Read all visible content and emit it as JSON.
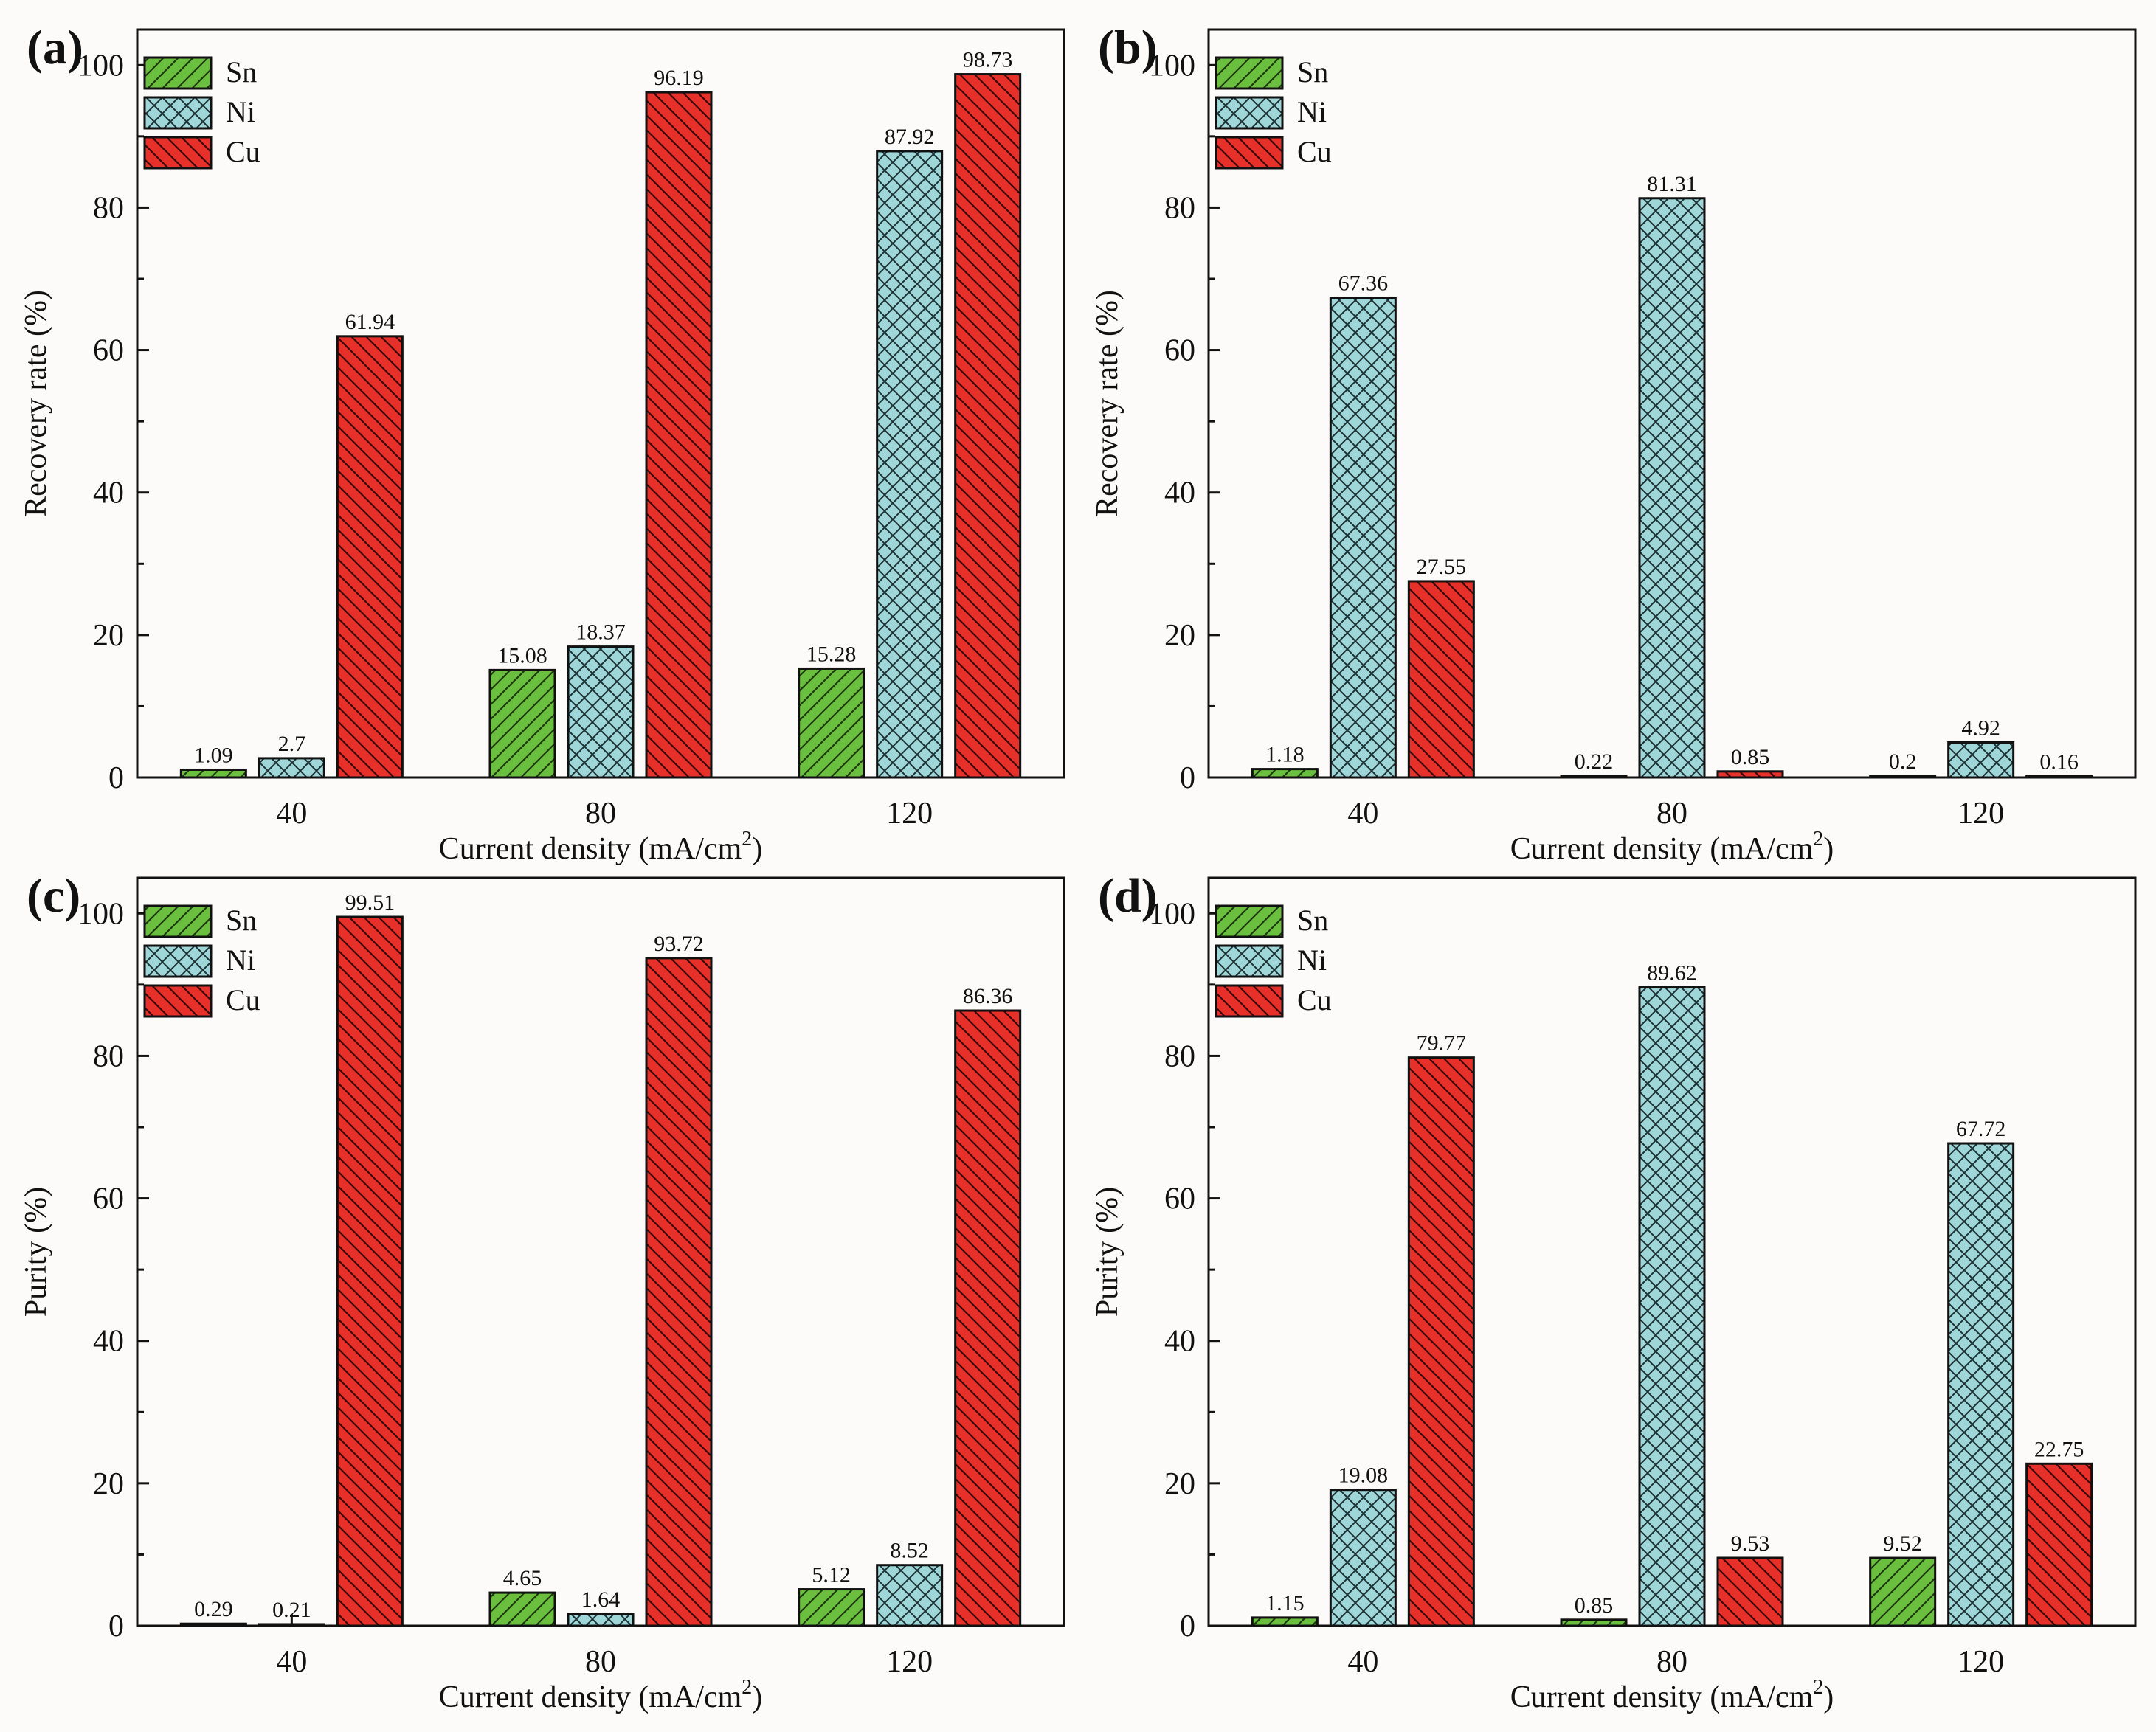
{
  "figure": {
    "series_style": [
      {
        "name": "Sn",
        "color": "#6bbf3f",
        "pattern": "diagonal-hatch"
      },
      {
        "name": "Ni",
        "color": "#9fd6d8",
        "pattern": "cross-hatch"
      },
      {
        "name": "Cu",
        "color": "#e8302a",
        "pattern": "back-diagonal-hatch"
      }
    ]
  },
  "chart_data": [
    {
      "panel": "(a)",
      "type": "bar",
      "categories": [
        "40",
        "80",
        "120"
      ],
      "xlabel": "Current density (mA/cm",
      "xlabel_sup": "2",
      "xlabel_end": ")",
      "ylabel": "Recovery rate (%)",
      "ylim": [
        0,
        105
      ],
      "yticks": [
        0,
        20,
        40,
        60,
        80,
        100
      ],
      "legend": "top-left",
      "series": [
        {
          "name": "Sn",
          "values": [
            1.09,
            15.08,
            15.28
          ],
          "labels": [
            "1.09",
            "15.08",
            "15.28"
          ]
        },
        {
          "name": "Ni",
          "values": [
            2.7,
            18.37,
            87.92
          ],
          "labels": [
            "2.7",
            "18.37",
            "87.92"
          ]
        },
        {
          "name": "Cu",
          "values": [
            61.94,
            96.19,
            98.73
          ],
          "labels": [
            "61.94",
            "96.19",
            "98.73"
          ]
        }
      ]
    },
    {
      "panel": "(b)",
      "type": "bar",
      "categories": [
        "40",
        "80",
        "120"
      ],
      "xlabel": "Current density (mA/cm",
      "xlabel_sup": "2",
      "xlabel_end": ")",
      "ylabel": "Recovery rate (%)",
      "ylim": [
        0,
        105
      ],
      "yticks": [
        0,
        20,
        40,
        60,
        80,
        100
      ],
      "legend": "top-left",
      "series": [
        {
          "name": "Sn",
          "values": [
            1.18,
            0.22,
            0.2
          ],
          "labels": [
            "1.18",
            "0.22",
            "0.2"
          ]
        },
        {
          "name": "Ni",
          "values": [
            67.36,
            81.31,
            4.92
          ],
          "labels": [
            "67.36",
            "81.31",
            "4.92"
          ]
        },
        {
          "name": "Cu",
          "values": [
            27.55,
            0.85,
            0.16
          ],
          "labels": [
            "27.55",
            "0.85",
            "0.16"
          ]
        }
      ]
    },
    {
      "panel": "(c)",
      "type": "bar",
      "categories": [
        "40",
        "80",
        "120"
      ],
      "xlabel": "Current density (mA/cm",
      "xlabel_sup": "2",
      "xlabel_end": ")",
      "ylabel": "Purity (%)",
      "ylim": [
        0,
        105
      ],
      "yticks": [
        0,
        20,
        40,
        60,
        80,
        100
      ],
      "legend": "top-left",
      "series": [
        {
          "name": "Sn",
          "values": [
            0.29,
            4.65,
            5.12
          ],
          "labels": [
            "0.29",
            "4.65",
            "5.12"
          ]
        },
        {
          "name": "Ni",
          "values": [
            0.21,
            1.64,
            8.52
          ],
          "labels": [
            "0.21",
            "1.64",
            "8.52"
          ]
        },
        {
          "name": "Cu",
          "values": [
            99.51,
            93.72,
            86.36
          ],
          "labels": [
            "99.51",
            "93.72",
            "86.36"
          ]
        }
      ]
    },
    {
      "panel": "(d)",
      "type": "bar",
      "categories": [
        "40",
        "80",
        "120"
      ],
      "xlabel": "Current density (mA/cm",
      "xlabel_sup": "2",
      "xlabel_end": ")",
      "ylabel": "Purity (%)",
      "ylim": [
        0,
        105
      ],
      "yticks": [
        0,
        20,
        40,
        60,
        80,
        100
      ],
      "legend": "top-left",
      "series": [
        {
          "name": "Sn",
          "values": [
            1.15,
            0.85,
            9.52
          ],
          "labels": [
            "1.15",
            "0.85",
            "9.52"
          ]
        },
        {
          "name": "Ni",
          "values": [
            19.08,
            89.62,
            67.72
          ],
          "labels": [
            "19.08",
            "89.62",
            "67.72"
          ]
        },
        {
          "name": "Cu",
          "values": [
            79.77,
            9.53,
            22.75
          ],
          "labels": [
            "79.77",
            "9.53",
            "22.75"
          ]
        }
      ]
    }
  ]
}
